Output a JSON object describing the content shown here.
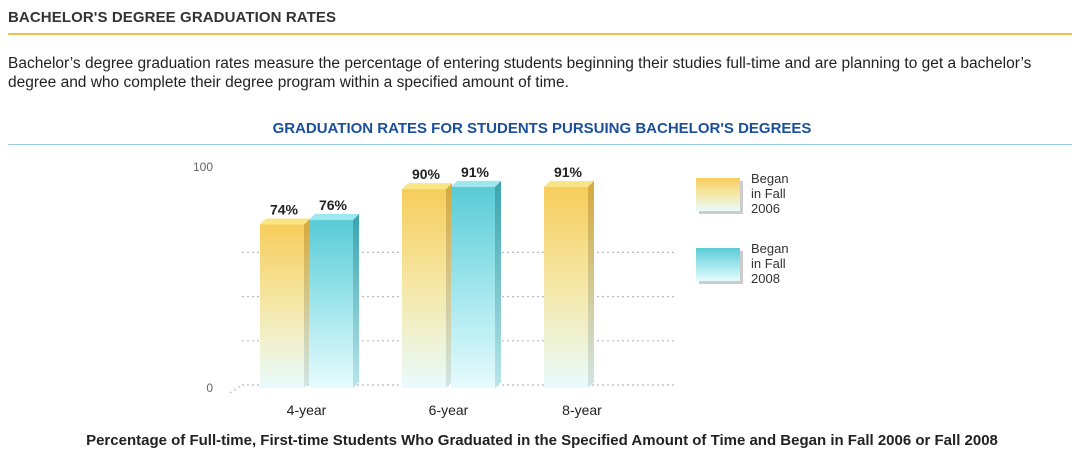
{
  "section": {
    "title": "BACHELOR'S DEGREE GRADUATION RATES",
    "intro": "Bachelor’s degree graduation rates measure the percentage of entering students beginning their studies full-time and are planning to get a bachelor’s degree and who complete their degree program within a specified amount of time."
  },
  "chart_data": {
    "type": "bar",
    "title": "GRADUATION RATES FOR STUDENTS PURSUING BACHELOR'S DEGREES",
    "categories": [
      "4-year",
      "6-year",
      "8-year"
    ],
    "series": [
      {
        "name": "Began in Fall 2006",
        "legend_lines": [
          "Began",
          "in Fall",
          "2006"
        ],
        "values": [
          74,
          90,
          91
        ],
        "labels": [
          "74%",
          "90%",
          "91%"
        ],
        "color": "#f5cd5e"
      },
      {
        "name": "Began in Fall 2008",
        "legend_lines": [
          "Began",
          "in Fall",
          "2008"
        ],
        "values": [
          76,
          91,
          null
        ],
        "labels": [
          "76%",
          "91%",
          null
        ],
        "color": "#5fcfd8"
      }
    ],
    "yticks": [
      "0",
      "100"
    ],
    "ylim": [
      0,
      100
    ],
    "grid": true,
    "legend": "right",
    "caption": "Percentage of Full-time, First-time Students Who Graduated in the Specified Amount of Time and Began in Fall 2006 or Fall 2008"
  },
  "colors": {
    "title_rule": "#f2c24a",
    "chart_title": "#1b4f9c",
    "chart_rule": "#9ccbe0"
  }
}
